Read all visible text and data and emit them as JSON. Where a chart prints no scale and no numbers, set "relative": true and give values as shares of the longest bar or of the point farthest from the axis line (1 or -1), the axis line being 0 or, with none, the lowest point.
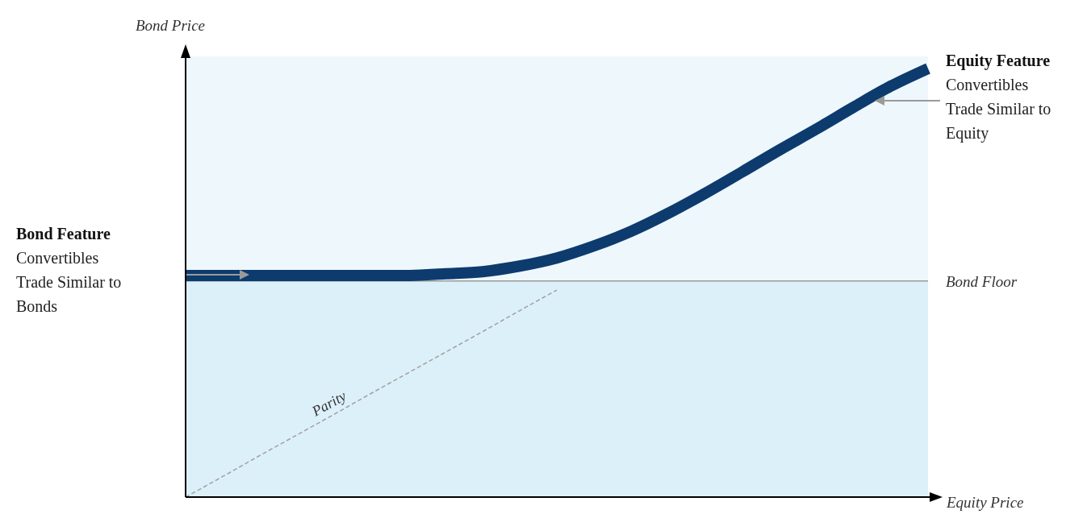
{
  "chart_data": {
    "type": "line",
    "relative": true,
    "xlabel": "Equity Price",
    "ylabel": "Bond Price",
    "categories": [
      null,
      null,
      null,
      null,
      null,
      null,
      null,
      null,
      null,
      null,
      null,
      null,
      null,
      null,
      null,
      null,
      null,
      null,
      null,
      null,
      null
    ],
    "series": [
      {
        "color": "#0d3b6e",
        "line_style": "solid",
        "values": [
          0.517,
          0.517,
          0.517,
          0.517,
          0.517,
          0.517,
          0.517,
          0.521,
          0.526,
          0.539,
          0.558,
          0.586,
          0.62,
          0.662,
          0.709,
          0.759,
          0.81,
          0.859,
          0.91,
          0.959,
          1
        ]
      },
      {
        "name": "Parity",
        "color": "#a0a0a0",
        "line_style": "dashed",
        "values": [
          0,
          0.048,
          0.097,
          0.145,
          0.193,
          0.242,
          0.29,
          0.338,
          0.386,
          0.435,
          0.483,
          null,
          null,
          null,
          null,
          null,
          null,
          null,
          null,
          null,
          null
        ]
      }
    ],
    "ref_lines": [
      {
        "axis": "y",
        "value": 0.504,
        "label": "Bond Floor",
        "color": "#9a9a9a"
      }
    ],
    "bands": [
      {
        "axis": "y",
        "from": 0,
        "to": 0.504,
        "color": "#dcf0f9"
      },
      {
        "axis": "y",
        "from": 0.504,
        "to": 1.028,
        "color": "#eef7fc"
      }
    ],
    "annotations": [
      "Bond Feature",
      "Convertibles Trade Similar to Bonds",
      "Equity Feature",
      "Convertibles Trade Similar to Equity"
    ],
    "marker": "none"
  }
}
